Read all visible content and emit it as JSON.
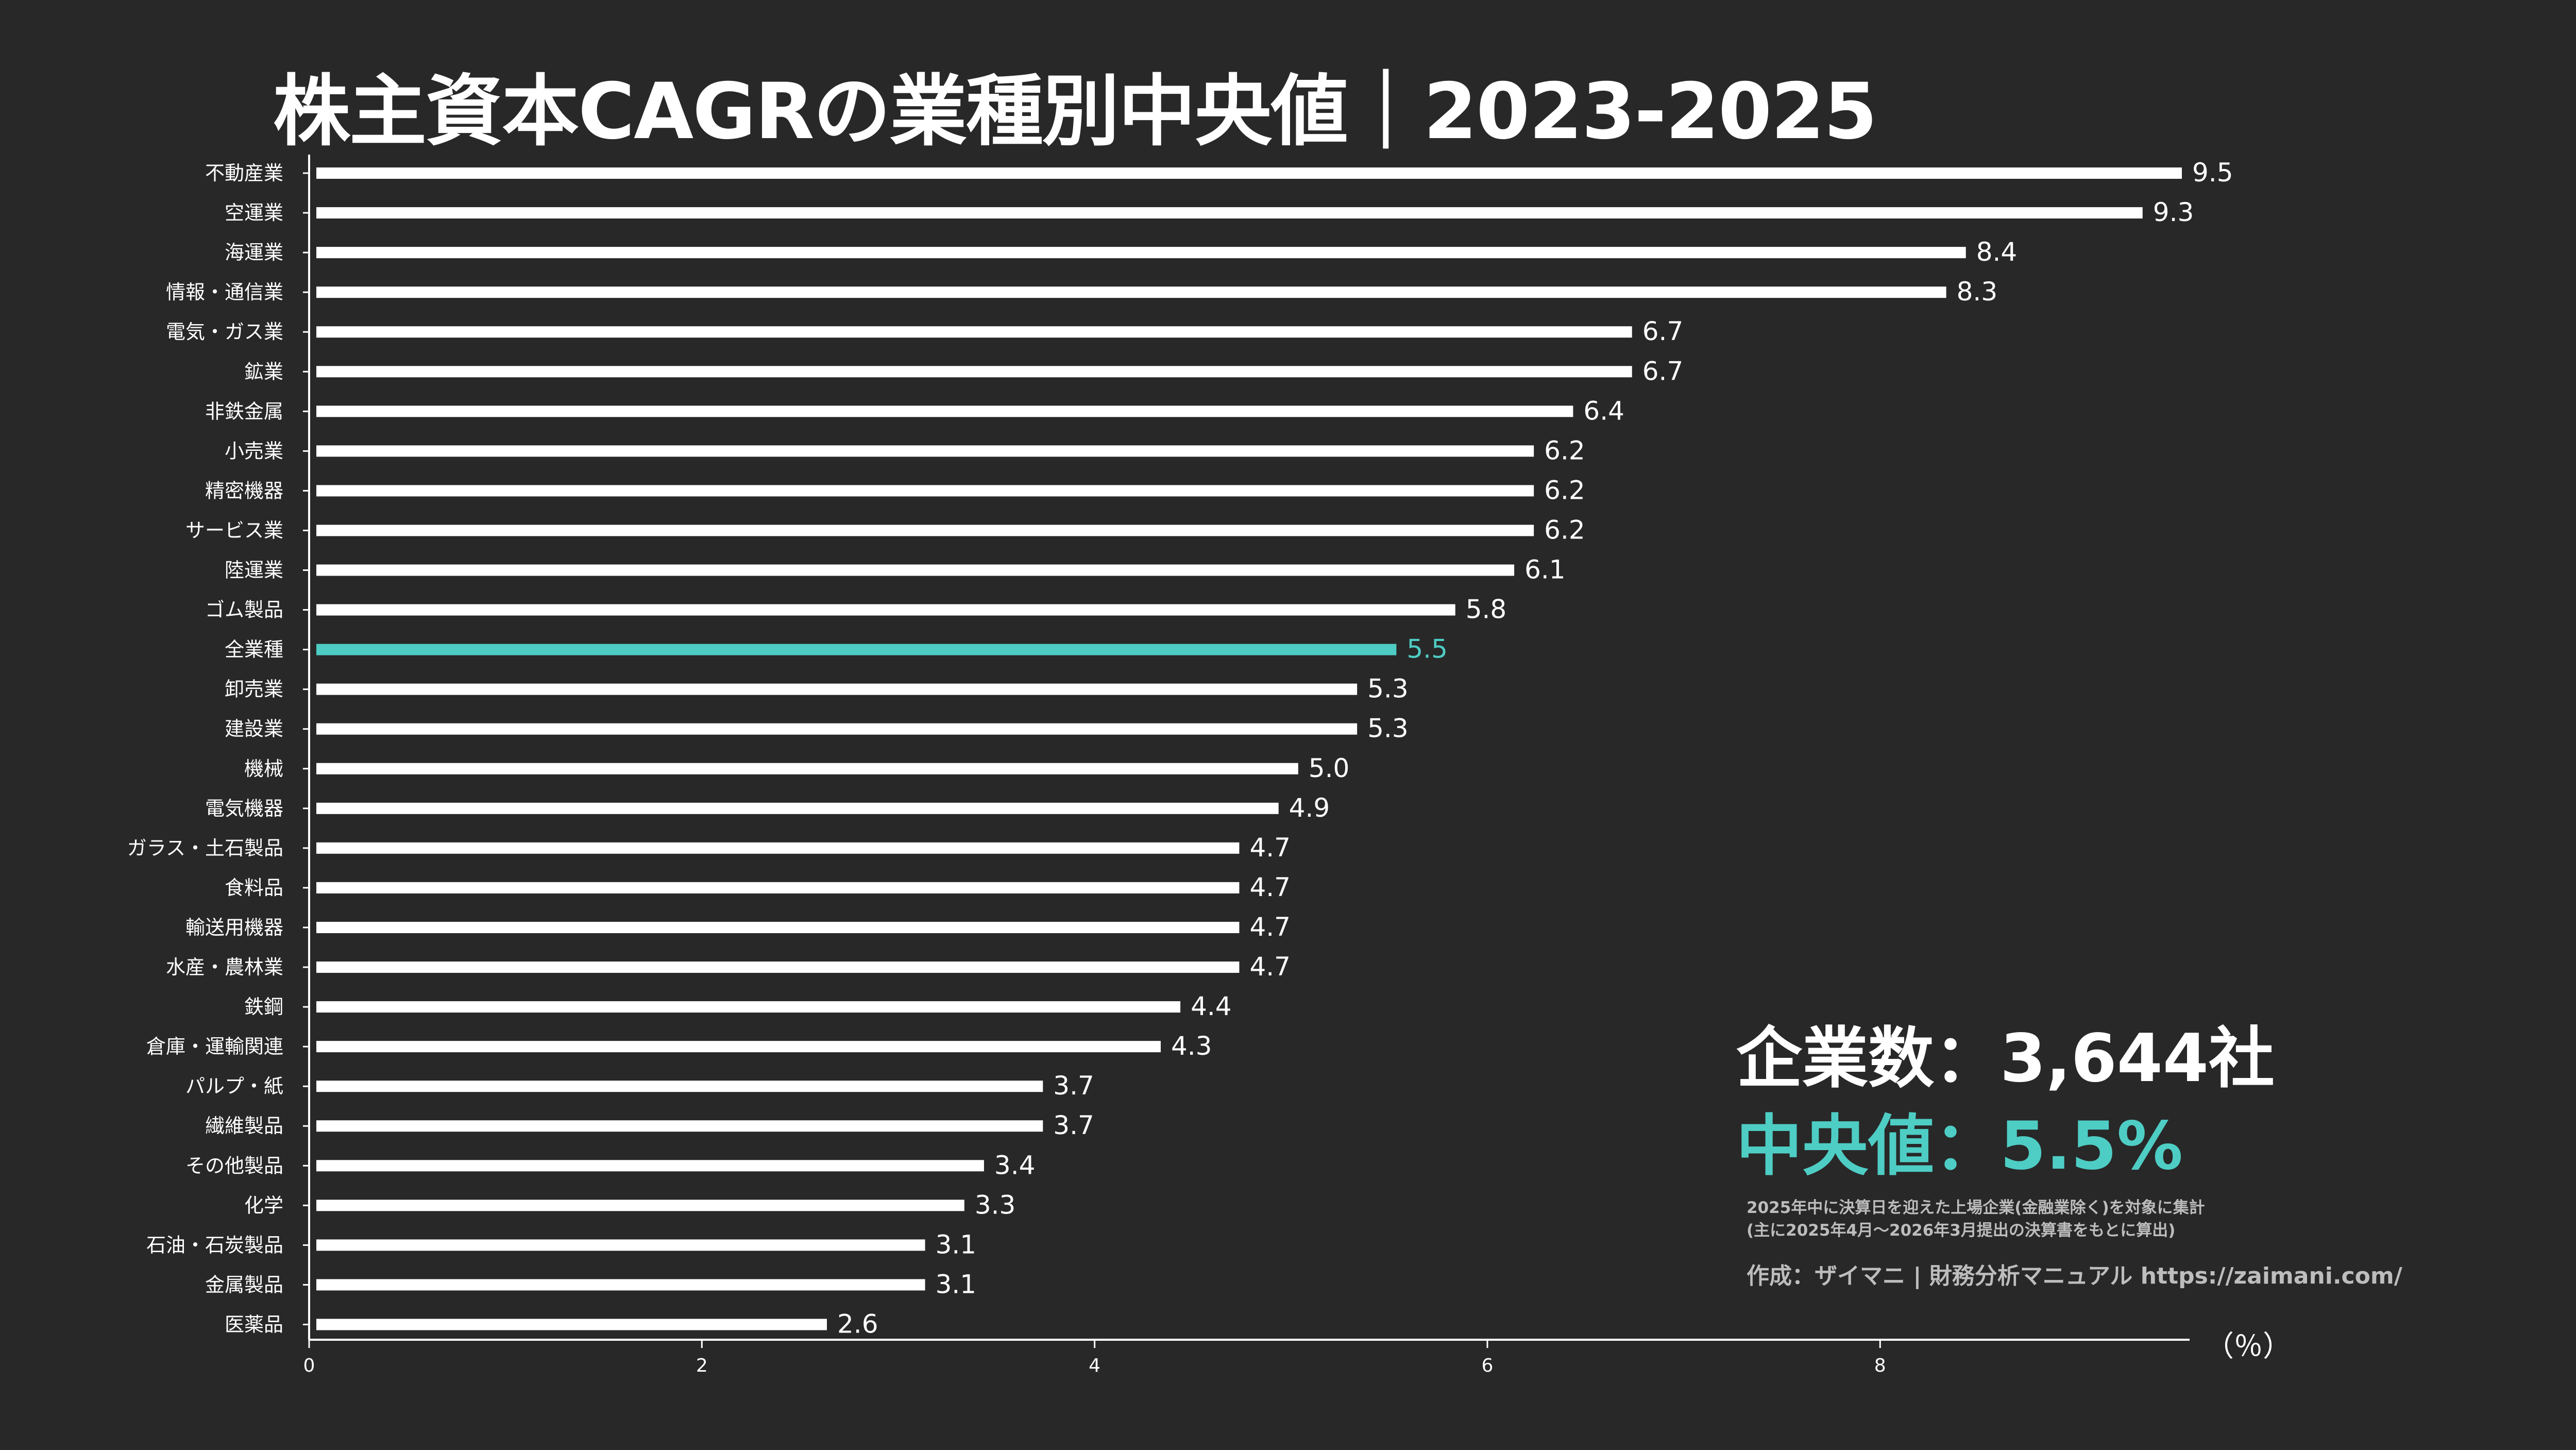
{
  "title": "株主資本CAGRの業種別中央値｜2023-2025",
  "stats": {
    "company_count": "企業数：3,644社",
    "median": "中央値：5.5%"
  },
  "note_lines": [
    "2025年中に決算日を迎えた上場企業(金融業除く)を対象に集計",
    "(主に2025年4月〜2026年3月提出の決算書をもとに算出)"
  ],
  "credit": "作成：ザイマニ | 財務分析マニュアル https://zaimani.com/",
  "colors": {
    "background": "#282828",
    "bar": "#ffffff",
    "highlight": "#4ecdc4",
    "text": "#ffffff",
    "muted": "#bdbdbd"
  },
  "chart_data": {
    "type": "bar",
    "orientation": "horizontal",
    "title": "株主資本CAGRの業種別中央値｜2023-2025",
    "xlabel": "（％）",
    "xlim": [
      0,
      9.5
    ],
    "xticks": [
      0,
      2,
      4,
      6,
      8
    ],
    "highlight": "全業種",
    "categories": [
      "不動産業",
      "空運業",
      "海運業",
      "情報・通信業",
      "電気・ガス業",
      "鉱業",
      "非鉄金属",
      "小売業",
      "精密機器",
      "サービス業",
      "陸運業",
      "ゴム製品",
      "全業種",
      "卸売業",
      "建設業",
      "機械",
      "電気機器",
      "ガラス・土石製品",
      "食料品",
      "輸送用機器",
      "水産・農林業",
      "鉄鋼",
      "倉庫・運輸関連",
      "パルプ・紙",
      "繊維製品",
      "その他製品",
      "化学",
      "石油・石炭製品",
      "金属製品",
      "医薬品"
    ],
    "values": [
      9.5,
      9.3,
      8.4,
      8.3,
      6.7,
      6.7,
      6.4,
      6.2,
      6.2,
      6.2,
      6.1,
      5.8,
      5.5,
      5.3,
      5.3,
      5.0,
      4.9,
      4.7,
      4.7,
      4.7,
      4.7,
      4.4,
      4.3,
      3.7,
      3.7,
      3.4,
      3.3,
      3.1,
      3.1,
      2.6
    ],
    "value_labels": [
      "9.5",
      "9.3",
      "8.4",
      "8.3",
      "6.7",
      "6.7",
      "6.4",
      "6.2",
      "6.2",
      "6.2",
      "6.1",
      "5.8",
      "5.5",
      "5.3",
      "5.3",
      "5.0",
      "4.9",
      "4.7",
      "4.7",
      "4.7",
      "4.7",
      "4.4",
      "4.3",
      "3.7",
      "3.7",
      "3.4",
      "3.3",
      "3.1",
      "3.1",
      "2.6"
    ]
  }
}
